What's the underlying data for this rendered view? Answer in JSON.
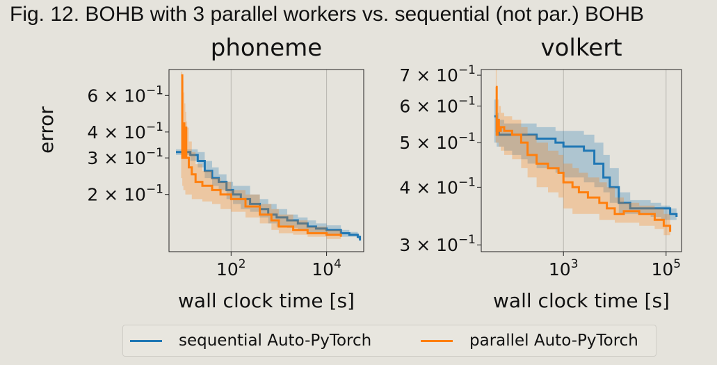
{
  "caption": "Fig. 12. BOHB with 3 parallel workers vs. sequential (not par.) BOHB",
  "colors": {
    "sequential": "#1f77b4",
    "parallel": "#ff7f0e",
    "background": "#e5e3dc"
  },
  "legend": {
    "sequential": "sequential Auto-PyTorch",
    "parallel": "parallel Auto-PyTorch"
  },
  "chart_data": [
    {
      "type": "line",
      "title": "phoneme",
      "xlabel": "wall clock time [s]",
      "ylabel": "error",
      "xscale": "log",
      "yscale": "log",
      "xlim": [
        5,
        60000
      ],
      "ylim": [
        0.106,
        0.8
      ],
      "xticks": [
        {
          "value": 100,
          "base": "10",
          "exp": "2"
        },
        {
          "value": 10000,
          "base": "10",
          "exp": "4"
        }
      ],
      "yticks": [
        {
          "value": 0.6,
          "mant": "6",
          "exp": "−1"
        },
        {
          "value": 0.4,
          "mant": "4",
          "exp": "−1"
        },
        {
          "value": 0.3,
          "mant": "3",
          "exp": "−1"
        },
        {
          "value": 0.2,
          "mant": "2",
          "exp": "−1"
        }
      ],
      "grid": "x",
      "series": [
        {
          "name": "sequential Auto-PyTorch",
          "key": "sequential",
          "x": [
            7,
            14,
            20,
            28,
            40,
            55,
            80,
            110,
            160,
            250,
            400,
            600,
            900,
            1500,
            2500,
            4000,
            6000,
            10000,
            20000,
            30000,
            45000,
            50000
          ],
          "y": [
            0.32,
            0.31,
            0.29,
            0.26,
            0.24,
            0.23,
            0.21,
            0.2,
            0.19,
            0.18,
            0.17,
            0.16,
            0.155,
            0.15,
            0.145,
            0.14,
            0.137,
            0.135,
            0.13,
            0.128,
            0.125,
            0.12
          ],
          "lower": [
            0.31,
            0.29,
            0.27,
            0.24,
            0.22,
            0.21,
            0.19,
            0.18,
            0.17,
            0.165,
            0.155,
            0.145,
            0.14,
            0.138,
            0.134,
            0.13,
            0.13,
            0.128,
            0.125,
            0.125,
            0.122,
            0.118
          ],
          "upper": [
            0.33,
            0.33,
            0.32,
            0.29,
            0.27,
            0.25,
            0.23,
            0.22,
            0.22,
            0.2,
            0.19,
            0.18,
            0.17,
            0.16,
            0.155,
            0.15,
            0.145,
            0.142,
            0.135,
            0.132,
            0.128,
            0.123
          ]
        },
        {
          "name": "parallel Auto-PyTorch",
          "key": "parallel",
          "x": [
            9,
            9.5,
            10,
            10.5,
            11,
            11.5,
            12,
            13,
            15,
            18,
            25,
            40,
            60,
            100,
            200,
            400,
            700,
            1000,
            2000,
            4000,
            10000,
            20000
          ],
          "y": [
            0.75,
            0.3,
            0.44,
            0.3,
            0.42,
            0.3,
            0.3,
            0.27,
            0.25,
            0.23,
            0.22,
            0.21,
            0.2,
            0.19,
            0.175,
            0.16,
            0.15,
            0.14,
            0.135,
            0.13,
            0.128,
            0.125
          ],
          "lower": [
            0.24,
            0.22,
            0.21,
            0.21,
            0.2,
            0.2,
            0.2,
            0.2,
            0.19,
            0.19,
            0.185,
            0.18,
            0.17,
            0.165,
            0.155,
            0.145,
            0.135,
            0.13,
            0.128,
            0.125,
            0.122,
            0.12
          ],
          "upper": [
            0.78,
            0.7,
            0.62,
            0.55,
            0.5,
            0.45,
            0.42,
            0.36,
            0.32,
            0.28,
            0.26,
            0.24,
            0.23,
            0.21,
            0.2,
            0.18,
            0.17,
            0.16,
            0.15,
            0.14,
            0.135,
            0.13
          ]
        }
      ]
    },
    {
      "type": "line",
      "title": "volkert",
      "xlabel": "wall clock time [s]",
      "ylabel": "",
      "xscale": "log",
      "yscale": "log",
      "xlim": [
        25,
        200000
      ],
      "ylim": [
        0.29,
        0.72
      ],
      "xticks": [
        {
          "value": 1000,
          "base": "10",
          "exp": "3"
        },
        {
          "value": 100000,
          "base": "10",
          "exp": "5"
        }
      ],
      "yticks": [
        {
          "value": 0.7,
          "mant": "7",
          "exp": "−1"
        },
        {
          "value": 0.6,
          "mant": "6",
          "exp": "−1"
        },
        {
          "value": 0.5,
          "mant": "5",
          "exp": "−1"
        },
        {
          "value": 0.4,
          "mant": "4",
          "exp": "−1"
        },
        {
          "value": 0.3,
          "mant": "3",
          "exp": "−1"
        }
      ],
      "grid": "x",
      "series": [
        {
          "name": "sequential Auto-PyTorch",
          "key": "sequential",
          "x": [
            45,
            50,
            55,
            70,
            100,
            150,
            200,
            300,
            450,
            700,
            1000,
            1500,
            2500,
            4000,
            6000,
            8000,
            12000,
            20000,
            30000,
            50000,
            80000,
            120000,
            160000
          ],
          "y": [
            0.57,
            0.53,
            0.52,
            0.52,
            0.52,
            0.52,
            0.52,
            0.51,
            0.51,
            0.5,
            0.49,
            0.49,
            0.48,
            0.45,
            0.42,
            0.4,
            0.37,
            0.36,
            0.36,
            0.36,
            0.36,
            0.35,
            0.345
          ],
          "lower": [
            0.5,
            0.49,
            0.49,
            0.48,
            0.47,
            0.46,
            0.45,
            0.44,
            0.44,
            0.43,
            0.42,
            0.42,
            0.41,
            0.4,
            0.39,
            0.37,
            0.35,
            0.35,
            0.35,
            0.345,
            0.34,
            0.34,
            0.335
          ],
          "upper": [
            0.62,
            0.58,
            0.56,
            0.55,
            0.55,
            0.55,
            0.55,
            0.54,
            0.54,
            0.53,
            0.53,
            0.53,
            0.52,
            0.5,
            0.47,
            0.44,
            0.39,
            0.375,
            0.375,
            0.37,
            0.365,
            0.36,
            0.355
          ]
        },
        {
          "name": "parallel Auto-PyTorch",
          "key": "parallel",
          "x": [
            48,
            50,
            52,
            55,
            60,
            70,
            100,
            150,
            200,
            300,
            500,
            800,
            1000,
            1500,
            2000,
            3000,
            5000,
            7000,
            10000,
            15000,
            30000,
            60000,
            90000,
            120000
          ],
          "y": [
            0.66,
            0.52,
            0.56,
            0.53,
            0.54,
            0.53,
            0.52,
            0.5,
            0.47,
            0.45,
            0.44,
            0.43,
            0.41,
            0.4,
            0.39,
            0.38,
            0.37,
            0.36,
            0.35,
            0.355,
            0.35,
            0.34,
            0.33,
            0.32
          ],
          "lower": [
            0.5,
            0.5,
            0.5,
            0.49,
            0.48,
            0.47,
            0.46,
            0.44,
            0.42,
            0.4,
            0.39,
            0.38,
            0.36,
            0.35,
            0.35,
            0.35,
            0.34,
            0.34,
            0.335,
            0.335,
            0.33,
            0.325,
            0.315,
            0.31
          ],
          "upper": [
            0.72,
            0.65,
            0.62,
            0.6,
            0.58,
            0.57,
            0.56,
            0.54,
            0.52,
            0.5,
            0.48,
            0.47,
            0.45,
            0.44,
            0.43,
            0.42,
            0.41,
            0.4,
            0.38,
            0.37,
            0.365,
            0.36,
            0.35,
            0.34
          ]
        }
      ]
    }
  ]
}
